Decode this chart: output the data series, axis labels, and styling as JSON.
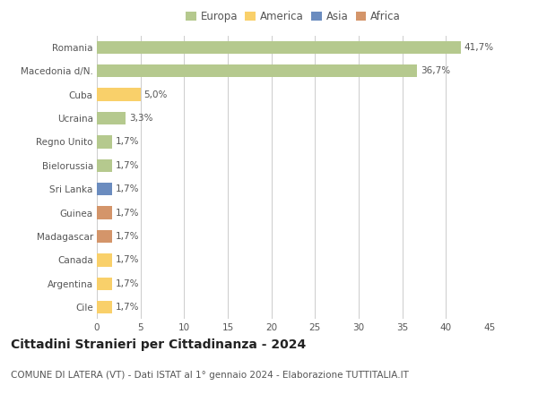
{
  "categories": [
    "Romania",
    "Macedonia d/N.",
    "Cuba",
    "Ucraina",
    "Regno Unito",
    "Bielorussia",
    "Sri Lanka",
    "Guinea",
    "Madagascar",
    "Canada",
    "Argentina",
    "Cile"
  ],
  "values": [
    41.7,
    36.7,
    5.0,
    3.3,
    1.7,
    1.7,
    1.7,
    1.7,
    1.7,
    1.7,
    1.7,
    1.7
  ],
  "labels": [
    "41,7%",
    "36,7%",
    "5,0%",
    "3,3%",
    "1,7%",
    "1,7%",
    "1,7%",
    "1,7%",
    "1,7%",
    "1,7%",
    "1,7%",
    "1,7%"
  ],
  "bar_colors": [
    "#b5c98e",
    "#b5c98e",
    "#f9d06a",
    "#b5c98e",
    "#b5c98e",
    "#b5c98e",
    "#6b8cbf",
    "#d4956a",
    "#d4956a",
    "#f9d06a",
    "#f9d06a",
    "#f9d06a"
  ],
  "legend_labels": [
    "Europa",
    "America",
    "Asia",
    "Africa"
  ],
  "legend_colors": [
    "#b5c98e",
    "#f9d06a",
    "#6b8cbf",
    "#d4956a"
  ],
  "title": "Cittadini Stranieri per Cittadinanza - 2024",
  "subtitle": "COMUNE DI LATERA (VT) - Dati ISTAT al 1° gennaio 2024 - Elaborazione TUTTITALIA.IT",
  "xlim": [
    0,
    45
  ],
  "xticks": [
    0,
    5,
    10,
    15,
    20,
    25,
    30,
    35,
    40,
    45
  ],
  "background_color": "#ffffff",
  "grid_color": "#cccccc",
  "bar_height": 0.55,
  "title_fontsize": 10,
  "subtitle_fontsize": 7.5,
  "label_fontsize": 7.5,
  "tick_fontsize": 7.5,
  "legend_fontsize": 8.5
}
